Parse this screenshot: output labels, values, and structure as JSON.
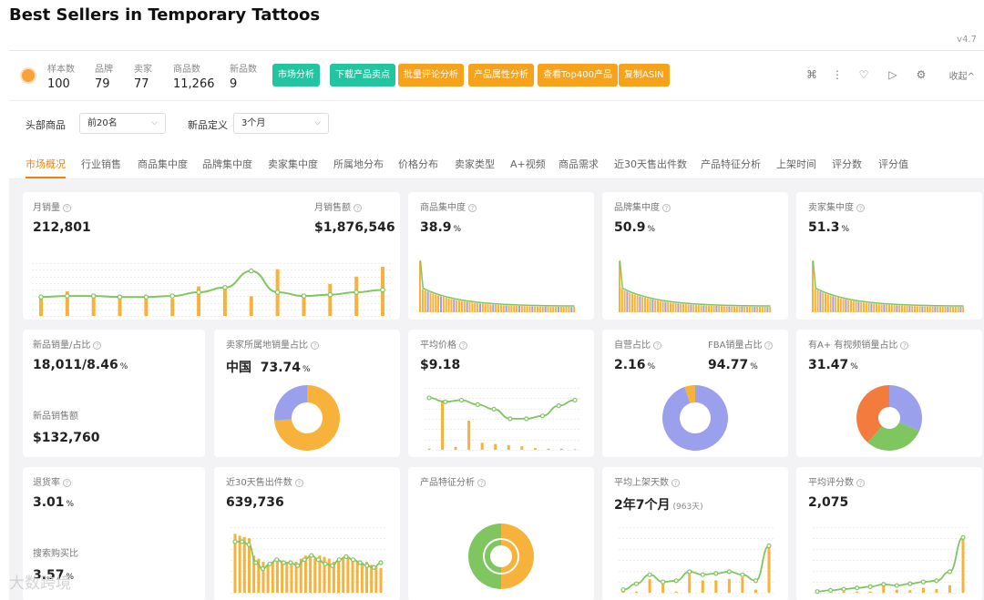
{
  "page": {
    "title": "Best Sellers in Temporary Tattoos",
    "version": "v4.7"
  },
  "summary": {
    "stats": [
      {
        "label": "样本数",
        "value": "100"
      },
      {
        "label": "品牌",
        "value": "79"
      },
      {
        "label": "卖家",
        "value": "77"
      },
      {
        "label": "商品数",
        "value": "11,266"
      },
      {
        "label": "新品数",
        "value": "9"
      }
    ],
    "buttons": [
      {
        "label": "市场分析",
        "color": "#22c5a0"
      },
      {
        "label": "下载产品卖点",
        "color": "#22c5a0"
      },
      {
        "label": "批量评论分析",
        "color": "#f6a21b"
      },
      {
        "label": "产品属性分析",
        "color": "#f6a21b"
      },
      {
        "label": "查看Top400产品",
        "color": "#f6a21b"
      },
      {
        "label": "复制ASIN",
        "color": "#f6a21b"
      }
    ],
    "tools": [
      "grid-icon",
      "more-icon",
      "heart-icon",
      "play-icon",
      "settings-icon"
    ],
    "collapse_label": "收起^"
  },
  "filters": {
    "top_label": "头部商品",
    "top_value": "前20名",
    "new_label": "新品定义",
    "new_value": "3个月"
  },
  "tabs": [
    "市场概况",
    "行业销售",
    "商品集中度",
    "品牌集中度",
    "卖家集中度",
    "所属地分布",
    "价格分布",
    "卖家类型",
    "A+视频",
    "商品需求",
    "近30天售出件数",
    "产品特征分析",
    "上架时间",
    "评分数",
    "评分值"
  ],
  "active_tab": "市场概况",
  "colors": {
    "orange": "#f7b23b",
    "green": "#7fc660",
    "purple": "#9aa0ec",
    "accent": "#f0810d",
    "red_orange": "#f37b3d"
  },
  "cards": {
    "monthly_sales": {
      "title": "月销量",
      "value": "212,801",
      "title2": "月销售额",
      "value2": "$1,876,546"
    },
    "product_conc": {
      "title": "商品集中度",
      "value": "38.9",
      "unit": "%"
    },
    "brand_conc": {
      "title": "品牌集中度",
      "value": "50.9",
      "unit": "%"
    },
    "seller_conc": {
      "title": "卖家集中度",
      "value": "51.3",
      "unit": "%"
    },
    "new_sales": {
      "title": "新品销量/占比",
      "value": "18,011/8.46",
      "unit": "%",
      "title2": "新品销售额",
      "value2": "$132,760"
    },
    "seller_region": {
      "title": "卖家所属地销量占比",
      "region": "中国",
      "value": "73.74",
      "unit": "%"
    },
    "avg_price": {
      "title": "平均价格",
      "value": "$9.18"
    },
    "self_fba": {
      "title": "自营占比",
      "value": "2.16",
      "unit": "%",
      "title2": "FBA销量占比",
      "value2": "94.77",
      "unit2": "%"
    },
    "aplus_video": {
      "title": "有A+ 有视频销量占比",
      "value": "31.47",
      "unit": "%"
    },
    "return_rate": {
      "title": "退货率",
      "value": "3.01",
      "unit": "%",
      "title2": "搜索购买比",
      "value2": "3.57",
      "unit2": "%"
    },
    "sold_30d": {
      "title": "近30天售出件数",
      "value": "639,736"
    },
    "feature": {
      "title": "产品特征分析"
    },
    "avg_listing": {
      "title": "平均上架天数",
      "value": "2年7个月",
      "sub": "(963天)"
    },
    "avg_rating_count": {
      "title": "平均评分数",
      "value": "2,075"
    }
  },
  "chart_data": [
    {
      "type": "bar",
      "id": "monthly-sales-chart",
      "values": [
        0.35,
        0.5,
        0.45,
        0.4,
        0.4,
        0.35,
        0.6,
        0.55,
        0.4,
        0.95,
        0.45,
        0.65,
        0.8,
        1.0
      ],
      "line": [
        0.4,
        0.42,
        0.42,
        0.4,
        0.4,
        0.42,
        0.5,
        0.6,
        0.95,
        0.5,
        0.42,
        0.45,
        0.5,
        0.55
      ]
    },
    {
      "type": "donut",
      "id": "seller-region-donut",
      "slices": [
        73.74,
        26.26
      ]
    },
    {
      "type": "donut",
      "id": "self-fba-donut",
      "slices": [
        94.77,
        5.23
      ]
    },
    {
      "type": "donut",
      "id": "aplus-video-donut",
      "slices": [
        31.47,
        30,
        38.53
      ]
    },
    {
      "type": "donut",
      "id": "feature-donut",
      "slices": [
        50,
        50
      ]
    }
  ],
  "watermark": "大数跨境"
}
